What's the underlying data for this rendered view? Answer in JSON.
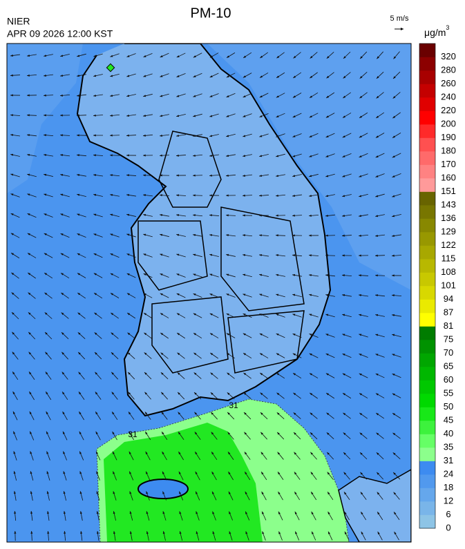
{
  "header": {
    "title": "PM-10",
    "agency": "NIER",
    "time": "APR 09 2026 12:00 KST",
    "wind_scale": "5 m/s",
    "unit": "μg/m",
    "unit_sup": "3"
  },
  "contour_labels": [
    "31",
    "31"
  ],
  "colorbar": {
    "ticks": [
      0,
      6,
      12,
      18,
      24,
      31,
      35,
      40,
      45,
      50,
      55,
      60,
      65,
      70,
      75,
      81,
      87,
      94,
      101,
      108,
      115,
      122,
      129,
      136,
      143,
      151,
      160,
      170,
      180,
      190,
      200,
      220,
      240,
      260,
      280,
      320
    ],
    "colors": [
      "#8dc4e6",
      "#79b5e9",
      "#65a7ec",
      "#5199ee",
      "#3d8bf0",
      "#8cff8c",
      "#66ff66",
      "#3df23d",
      "#18e818",
      "#00d900",
      "#00c800",
      "#00b700",
      "#00a600",
      "#009200",
      "#007c00",
      "#ffff00",
      "#eaea00",
      "#d8d800",
      "#c8c800",
      "#b8b800",
      "#a8a800",
      "#989800",
      "#888800",
      "#787600",
      "#686400",
      "#ff9a9a",
      "#ff8282",
      "#ff6a6a",
      "#ff5050",
      "#ff2a2a",
      "#ff0000",
      "#e00000",
      "#c40000",
      "#a80000",
      "#8c0000",
      "#6a0000"
    ]
  }
}
